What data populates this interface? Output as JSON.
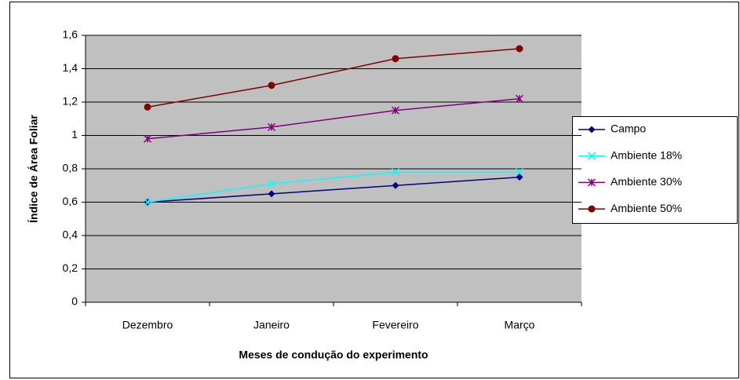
{
  "chart_data": {
    "type": "line",
    "x_label": "Meses de condução do experimento",
    "y_label": "Índice de Área Foliar",
    "categories": [
      "Dezembro",
      "Janeiro",
      "Fevereiro",
      "Março"
    ],
    "series": [
      {
        "name": "Campo",
        "color": "#000080",
        "marker": "diamond",
        "values": [
          0.6,
          0.65,
          0.7,
          0.75
        ]
      },
      {
        "name": "Ambiente 18%",
        "color": "#00ffff",
        "marker": "x",
        "values": [
          0.6,
          0.71,
          0.78,
          0.78
        ]
      },
      {
        "name": "Ambiente 30%",
        "color": "#800080",
        "marker": "star",
        "values": [
          0.98,
          1.05,
          1.15,
          1.22
        ]
      },
      {
        "name": "Ambiente 50%",
        "color": "#800000",
        "marker": "circle",
        "values": [
          1.17,
          1.3,
          1.46,
          1.52
        ]
      }
    ],
    "ylim": [
      0,
      1.6
    ],
    "yticks": [
      0,
      {
        "value": 0.2,
        "label": "0,2"
      },
      {
        "value": 0.4,
        "label": "0,4"
      },
      {
        "value": 0.6,
        "label": "0,6"
      },
      {
        "value": 0.8,
        "label": "0,8"
      },
      1,
      {
        "value": 1.2,
        "label": "1,2"
      },
      {
        "value": 1.4,
        "label": "1,4"
      },
      {
        "value": 1.6,
        "label": "1,6"
      }
    ],
    "grid": true,
    "legend": "right"
  }
}
